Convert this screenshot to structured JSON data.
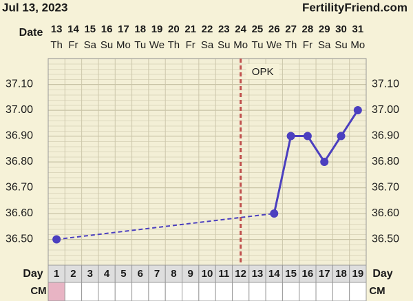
{
  "header": {
    "date": "Jul 13, 2023",
    "site": "FertilityFriend.com"
  },
  "chart_data": {
    "type": "line",
    "x_label": "Date",
    "categories": [
      "13",
      "14",
      "15",
      "16",
      "17",
      "18",
      "19",
      "20",
      "21",
      "22",
      "23",
      "24",
      "25",
      "26",
      "27",
      "28",
      "29",
      "30",
      "31"
    ],
    "weekdays": [
      "Th",
      "Fr",
      "Sa",
      "Su",
      "Mo",
      "Tu",
      "We",
      "Th",
      "Fr",
      "Sa",
      "Su",
      "Mo",
      "Tu",
      "We",
      "Th",
      "Fr",
      "Sa",
      "Su",
      "Mo"
    ],
    "values": [
      36.5,
      null,
      null,
      null,
      null,
      null,
      null,
      null,
      null,
      null,
      null,
      null,
      null,
      36.6,
      36.9,
      36.9,
      36.8,
      36.9,
      37.0
    ],
    "color": "#4b3fbf",
    "ylim": [
      36.4,
      37.2
    ],
    "yticks": [
      {
        "value": 36.5,
        "label": "36.50"
      },
      {
        "value": 36.6,
        "label": "36.60"
      },
      {
        "value": 36.7,
        "label": "36.70"
      },
      {
        "value": 36.8,
        "label": "36.80"
      },
      {
        "value": 36.9,
        "label": "36.90"
      },
      {
        "value": 37.0,
        "label": "37.00"
      },
      {
        "value": 37.1,
        "label": "37.10"
      }
    ],
    "annotations": [
      {
        "text": "OPK",
        "x": "24",
        "color": "#c0504d"
      }
    ],
    "day_label": "Day",
    "days": [
      1,
      2,
      3,
      4,
      5,
      6,
      7,
      8,
      9,
      10,
      11,
      12,
      13,
      14,
      15,
      16,
      17,
      18,
      19
    ],
    "cm_label": "CM"
  }
}
